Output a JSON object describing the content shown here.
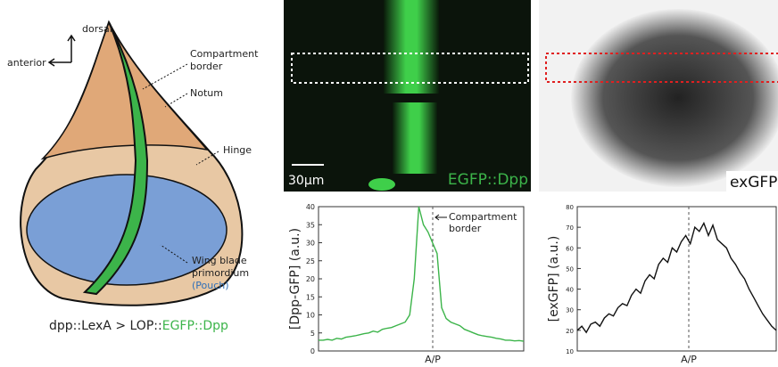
{
  "diagram": {
    "dorsal": "dorsal",
    "anterior": "anterior",
    "compartment_border": [
      "Compartment",
      "border"
    ],
    "notum": "Notum",
    "hinge": "Hinge",
    "wing_blade": [
      "Wing blade",
      "primordium"
    ],
    "pouch": "(Pouch)",
    "caption": {
      "prefix": "dpp::LexA > LOP::",
      "highlight": "EGFP::Dpp"
    }
  },
  "images": {
    "left": {
      "scale_bar": "30μm",
      "label": "EGFP::Dpp"
    },
    "right": {
      "label": "exGFP"
    }
  },
  "chart_data": [
    {
      "type": "line",
      "ylabel": "[Dpp-GFP] (a.u.)",
      "xlabel": "A/P",
      "annotation": [
        "Compartment",
        "border"
      ],
      "color": "#3cb44a",
      "ylim": [
        0,
        40
      ],
      "yticks": [
        0,
        5,
        10,
        15,
        20,
        25,
        30,
        35,
        40
      ],
      "values": [
        3,
        3,
        3.2,
        3,
        3.5,
        3.3,
        3.8,
        4,
        4.2,
        4.5,
        4.8,
        5,
        5.5,
        5.2,
        6,
        6.3,
        6.5,
        7,
        7.5,
        8,
        10,
        20,
        40,
        35,
        33,
        30,
        27,
        12,
        9,
        8,
        7.5,
        7,
        6,
        5.5,
        5,
        4.5,
        4.2,
        4,
        3.8,
        3.5,
        3.3,
        3,
        3,
        2.8,
        2.9,
        2.7
      ]
    },
    {
      "type": "line",
      "ylabel": "[exGFP] (a.u.)",
      "xlabel": "A/P",
      "color": "#111111",
      "ylim": [
        10,
        80
      ],
      "yticks": [
        10,
        20,
        30,
        40,
        50,
        60,
        70,
        80
      ],
      "values": [
        20,
        22,
        19,
        23,
        24,
        22,
        26,
        28,
        27,
        31,
        33,
        32,
        37,
        40,
        38,
        44,
        47,
        45,
        52,
        55,
        53,
        60,
        58,
        63,
        66,
        62,
        70,
        68,
        72,
        66,
        71,
        64,
        62,
        60,
        55,
        52,
        48,
        45,
        40,
        36,
        32,
        28,
        25,
        22,
        20
      ]
    }
  ]
}
